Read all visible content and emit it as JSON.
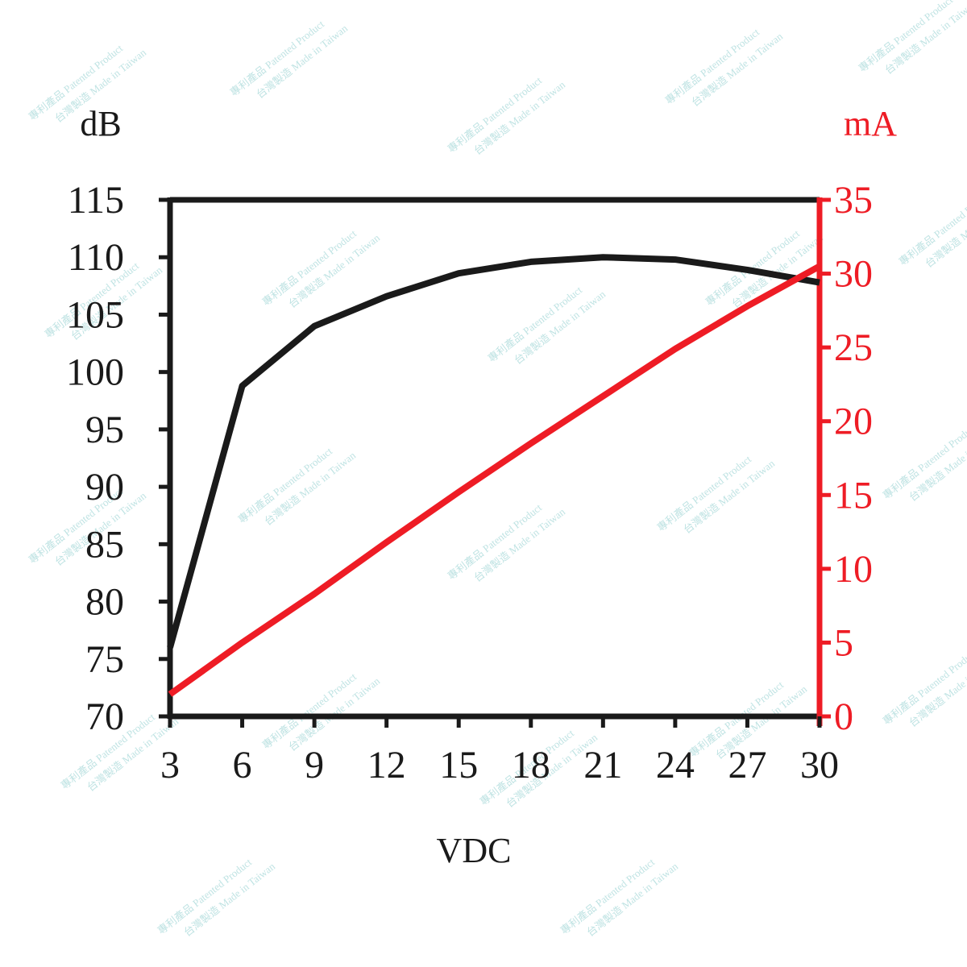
{
  "chart_data": {
    "type": "line",
    "title": "",
    "xlabel": "VDC",
    "ylabel_left": "dB",
    "ylabel_right": "mA",
    "x": [
      3,
      6,
      9,
      12,
      15,
      18,
      21,
      24,
      27,
      30
    ],
    "xlim": [
      3,
      30
    ],
    "ylim_left": [
      70,
      115
    ],
    "ylim_right": [
      0,
      35
    ],
    "yticks_left": [
      70,
      75,
      80,
      85,
      90,
      95,
      100,
      105,
      110,
      115
    ],
    "yticks_right": [
      0,
      5,
      10,
      15,
      20,
      25,
      30,
      35
    ],
    "grid": false,
    "legend": "none",
    "series": [
      {
        "axis": "left",
        "color": "#1a1a1a",
        "values": [
          76,
          98.8,
          104,
          106.6,
          108.6,
          109.6,
          110,
          109.8,
          108.9,
          107.8
        ]
      },
      {
        "axis": "right",
        "color": "#ee1c25",
        "values": [
          1.5,
          5,
          8.3,
          11.8,
          15.2,
          18.5,
          21.7,
          24.9,
          27.8,
          30.5
        ]
      }
    ]
  },
  "colors": {
    "left_axis": "#1a1a1a",
    "right_axis": "#ee1c25",
    "watermark": "#bfe3e3"
  },
  "watermark": {
    "line1": "專利產品 Patented Product",
    "line2": "台灣製造 Made in Taiwan"
  }
}
